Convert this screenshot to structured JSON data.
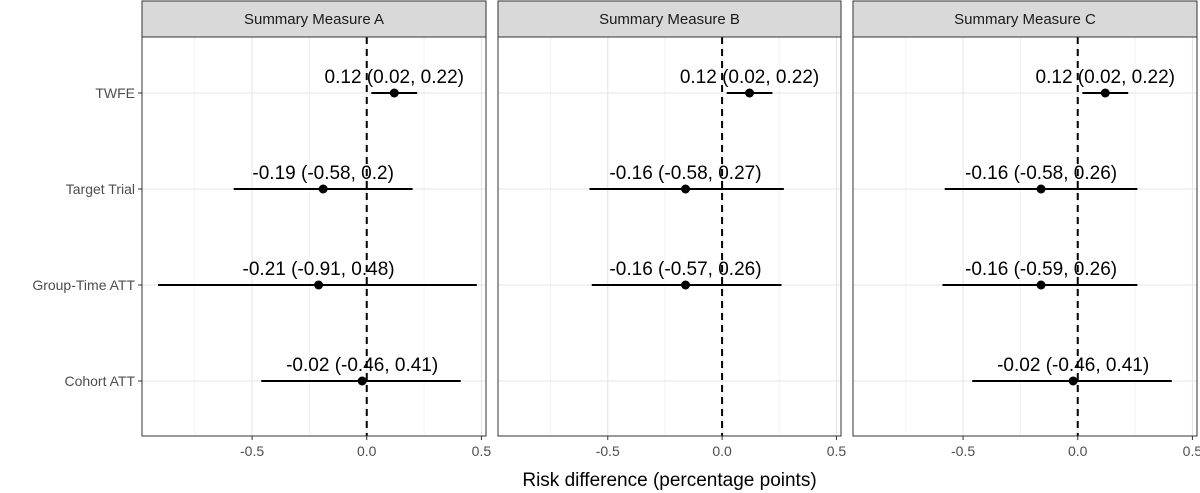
{
  "chart_data": {
    "type": "forest",
    "xlabel": "Risk difference (percentage points)",
    "xlim": [
      -0.98,
      0.52
    ],
    "xticks": [
      -0.5,
      0.0,
      0.5
    ],
    "xtick_labels": [
      "-0.5",
      "0.0",
      "0.5"
    ],
    "reference_line": 0,
    "grid": true,
    "categories": [
      "TWFE",
      "Target Trial",
      "Group-Time ATT",
      "Cohort ATT"
    ],
    "panels": [
      {
        "title": "Summary Measure A",
        "points": [
          {
            "estimate": 0.12,
            "lower": 0.02,
            "upper": 0.22,
            "label": "0.12 (0.02, 0.22)"
          },
          {
            "estimate": -0.19,
            "lower": -0.58,
            "upper": 0.2,
            "label": "-0.19 (-0.58, 0.2)"
          },
          {
            "estimate": -0.21,
            "lower": -0.91,
            "upper": 0.48,
            "label": "-0.21 (-0.91, 0.48)"
          },
          {
            "estimate": -0.02,
            "lower": -0.46,
            "upper": 0.41,
            "label": "-0.02 (-0.46, 0.41)"
          }
        ]
      },
      {
        "title": "Summary Measure B",
        "points": [
          {
            "estimate": 0.12,
            "lower": 0.02,
            "upper": 0.22,
            "label": "0.12 (0.02, 0.22)"
          },
          {
            "estimate": -0.16,
            "lower": -0.58,
            "upper": 0.27,
            "label": "-0.16 (-0.58, 0.27)"
          },
          {
            "estimate": -0.16,
            "lower": -0.57,
            "upper": 0.26,
            "label": "-0.16 (-0.57, 0.26)"
          },
          null
        ]
      },
      {
        "title": "Summary Measure C",
        "points": [
          {
            "estimate": 0.12,
            "lower": 0.02,
            "upper": 0.22,
            "label": "0.12 (0.02, 0.22)"
          },
          {
            "estimate": -0.16,
            "lower": -0.58,
            "upper": 0.26,
            "label": "-0.16 (-0.58, 0.26)"
          },
          {
            "estimate": -0.16,
            "lower": -0.59,
            "upper": 0.26,
            "label": "-0.16 (-0.59, 0.26)"
          },
          {
            "estimate": -0.02,
            "lower": -0.46,
            "upper": 0.41,
            "label": "-0.02 (-0.46, 0.41)"
          }
        ]
      }
    ]
  }
}
